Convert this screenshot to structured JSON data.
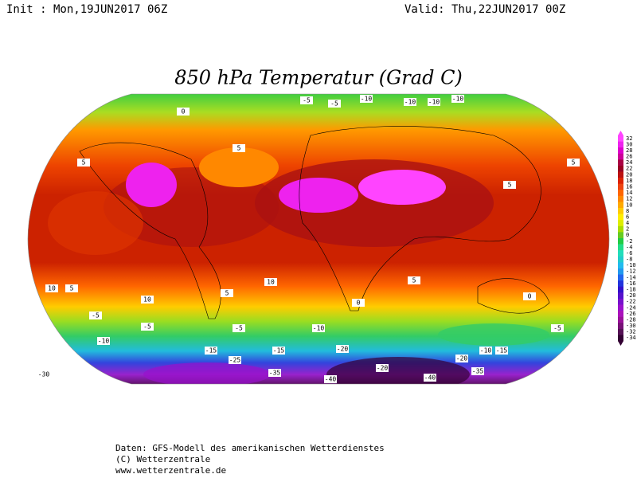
{
  "header": {
    "init": "Init : Mon,19JUN2017 06Z",
    "valid": "Valid: Thu,22JUN2017 00Z"
  },
  "title": "850 hPa Temperatur (Grad C)",
  "colorbar": {
    "levels": [
      32,
      30,
      28,
      26,
      24,
      22,
      20,
      18,
      16,
      14,
      12,
      10,
      8,
      6,
      4,
      2,
      0,
      -2,
      -4,
      -6,
      -8,
      -10,
      -12,
      -14,
      -16,
      -18,
      -20,
      -22,
      -24,
      -26,
      -28,
      -30,
      -32,
      -34
    ],
    "colors": [
      "#ff44ff",
      "#ee22ee",
      "#dd00cc",
      "#cc0099",
      "#aa0044",
      "#990022",
      "#bb1111",
      "#dd2200",
      "#ee4411",
      "#ff6600",
      "#ff8800",
      "#ffaa00",
      "#ffcc00",
      "#ffee00",
      "#ddee00",
      "#aadd00",
      "#66cc22",
      "#22cc44",
      "#22dd88",
      "#22ddbb",
      "#22cccc",
      "#22bbee",
      "#2299ee",
      "#2266ee",
      "#2233dd",
      "#3311cc",
      "#5511cc",
      "#7711cc",
      "#9911cc",
      "#aa11bb",
      "#991199",
      "#771177",
      "#551155",
      "#330033"
    ]
  },
  "contour_labels": [
    "-5",
    "-5",
    "-10",
    "-10",
    "-10",
    "-10",
    "5",
    "0",
    "5",
    "5",
    "5",
    "10",
    "10",
    "10",
    "5",
    "5",
    "0",
    "5",
    "-5",
    "-5",
    "-10",
    "-10",
    "-15",
    "-15",
    "-20",
    "-20",
    "-25",
    "-30",
    "-35",
    "-40",
    "-40",
    "-35",
    "-20",
    "-15",
    "-10",
    "-5",
    "0",
    "-5"
  ],
  "footer": [
    "Daten: GFS-Modell des amerikanischen Wetterdienstes",
    "(C) Wetterzentrale",
    "www.wetterzentrale.de"
  ]
}
